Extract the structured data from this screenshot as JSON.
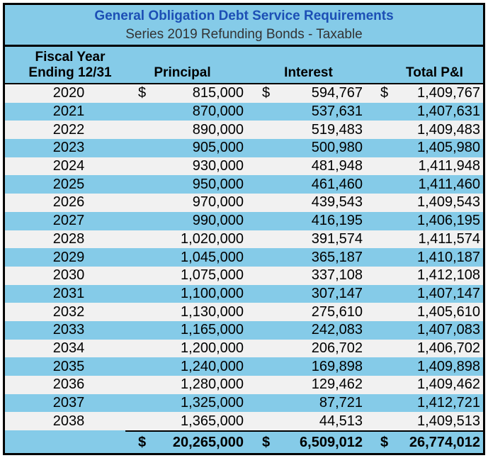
{
  "table": {
    "title": "General Obligation Debt Service Requirements",
    "subtitle": "Series 2019 Refunding Bonds - Taxable",
    "columns": {
      "fiscal_year_line1": "Fiscal Year",
      "fiscal_year_line2": "Ending 12/31",
      "principal": "Principal",
      "interest": "Interest",
      "total": "Total P&I"
    },
    "currency_symbol": "$",
    "rows": [
      {
        "year": "2020",
        "principal": "815,000",
        "interest": "594,767",
        "total": "1,409,767"
      },
      {
        "year": "2021",
        "principal": "870,000",
        "interest": "537,631",
        "total": "1,407,631"
      },
      {
        "year": "2022",
        "principal": "890,000",
        "interest": "519,483",
        "total": "1,409,483"
      },
      {
        "year": "2023",
        "principal": "905,000",
        "interest": "500,980",
        "total": "1,405,980"
      },
      {
        "year": "2024",
        "principal": "930,000",
        "interest": "481,948",
        "total": "1,411,948"
      },
      {
        "year": "2025",
        "principal": "950,000",
        "interest": "461,460",
        "total": "1,411,460"
      },
      {
        "year": "2026",
        "principal": "970,000",
        "interest": "439,543",
        "total": "1,409,543"
      },
      {
        "year": "2027",
        "principal": "990,000",
        "interest": "416,195",
        "total": "1,406,195"
      },
      {
        "year": "2028",
        "principal": "1,020,000",
        "interest": "391,574",
        "total": "1,411,574"
      },
      {
        "year": "2029",
        "principal": "1,045,000",
        "interest": "365,187",
        "total": "1,410,187"
      },
      {
        "year": "2030",
        "principal": "1,075,000",
        "interest": "337,108",
        "total": "1,412,108"
      },
      {
        "year": "2031",
        "principal": "1,100,000",
        "interest": "307,147",
        "total": "1,407,147"
      },
      {
        "year": "2032",
        "principal": "1,130,000",
        "interest": "275,610",
        "total": "1,405,610"
      },
      {
        "year": "2033",
        "principal": "1,165,000",
        "interest": "242,083",
        "total": "1,407,083"
      },
      {
        "year": "2034",
        "principal": "1,200,000",
        "interest": "206,702",
        "total": "1,406,702"
      },
      {
        "year": "2035",
        "principal": "1,240,000",
        "interest": "169,898",
        "total": "1,409,898"
      },
      {
        "year": "2036",
        "principal": "1,280,000",
        "interest": "129,462",
        "total": "1,409,462"
      },
      {
        "year": "2037",
        "principal": "1,325,000",
        "interest": "87,721",
        "total": "1,412,721"
      },
      {
        "year": "2038",
        "principal": "1,365,000",
        "interest": "44,513",
        "total": "1,409,513"
      }
    ],
    "totals": {
      "principal": "20,265,000",
      "interest": "6,509,012",
      "total": "26,774,012"
    },
    "colors": {
      "stripe_blue": "#85CBE8",
      "stripe_gray": "#F1F1F1",
      "title_blue": "#1C4FB5",
      "border_black": "#000000"
    }
  },
  "chart_data": {
    "type": "table",
    "title": "General Obligation Debt Service Requirements",
    "subtitle": "Series 2019 Refunding Bonds - Taxable",
    "columns": [
      "Fiscal Year Ending 12/31",
      "Principal",
      "Interest",
      "Total P&I"
    ],
    "rows": [
      [
        2020,
        815000,
        594767,
        1409767
      ],
      [
        2021,
        870000,
        537631,
        1407631
      ],
      [
        2022,
        890000,
        519483,
        1409483
      ],
      [
        2023,
        905000,
        500980,
        1405980
      ],
      [
        2024,
        930000,
        481948,
        1411948
      ],
      [
        2025,
        950000,
        461460,
        1411460
      ],
      [
        2026,
        970000,
        439543,
        1409543
      ],
      [
        2027,
        990000,
        416195,
        1406195
      ],
      [
        2028,
        1020000,
        391574,
        1411574
      ],
      [
        2029,
        1045000,
        365187,
        1410187
      ],
      [
        2030,
        1075000,
        337108,
        1412108
      ],
      [
        2031,
        1100000,
        307147,
        1407147
      ],
      [
        2032,
        1130000,
        275610,
        1405610
      ],
      [
        2033,
        1165000,
        242083,
        1407083
      ],
      [
        2034,
        1200000,
        206702,
        1406702
      ],
      [
        2035,
        1240000,
        169898,
        1409898
      ],
      [
        2036,
        1280000,
        129462,
        1409462
      ],
      [
        2037,
        1325000,
        87721,
        1412721
      ],
      [
        2038,
        1365000,
        44513,
        1409513
      ]
    ],
    "totals": {
      "principal": 20265000,
      "interest": 6509012,
      "total_pi": 26774012
    },
    "layout": {
      "striped_rows": true,
      "currency": "USD",
      "grid": false
    }
  }
}
